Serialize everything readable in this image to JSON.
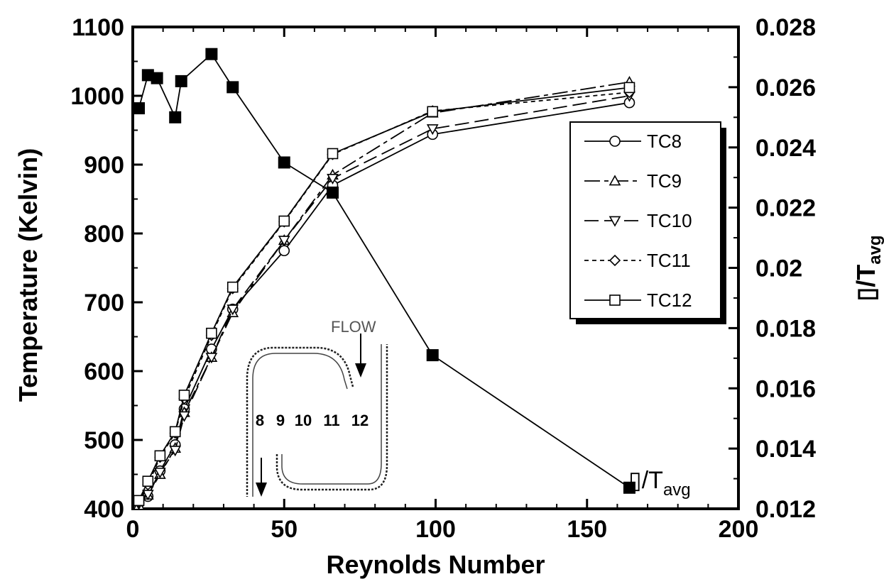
{
  "chart_data": {
    "type": "line",
    "xlabel": "Reynolds Number",
    "ylabel": "Temperature (Kelvin)",
    "y2label": "▯/T",
    "y2label_sub": "avg",
    "xlim": [
      0,
      200
    ],
    "ylim": [
      400,
      1100
    ],
    "y2lim": [
      0.012,
      0.028
    ],
    "xticks": [
      "0",
      "50",
      "100",
      "150",
      "200"
    ],
    "yticks": [
      "400",
      "500",
      "600",
      "700",
      "800",
      "900",
      "1000",
      "1100"
    ],
    "y2ticks": [
      "0.012",
      "0.014",
      "0.016",
      "0.018",
      "0.02",
      "0.022",
      "0.024",
      "0.026",
      "0.028"
    ],
    "grid": false,
    "legend_position": "top-right",
    "series": [
      {
        "name": "TC8",
        "marker": "circle",
        "dash": "solid",
        "x": [
          2,
          5,
          9,
          14,
          17,
          26,
          33,
          50,
          66,
          99,
          164
        ],
        "y": [
          408,
          418,
          455,
          493,
          545,
          632,
          690,
          775,
          870,
          944,
          990
        ]
      },
      {
        "name": "TC9",
        "marker": "triangle-up",
        "dash": "long-short",
        "x": [
          2,
          5,
          9,
          14,
          17,
          26,
          33,
          50,
          66,
          99,
          164
        ],
        "y": [
          405,
          420,
          450,
          488,
          540,
          620,
          685,
          790,
          885,
          975,
          1020
        ]
      },
      {
        "name": "TC10",
        "marker": "triangle-down",
        "dash": "long",
        "x": [
          2,
          5,
          9,
          14,
          17,
          26,
          33,
          50,
          66,
          99,
          164
        ],
        "y": [
          407,
          421,
          453,
          485,
          535,
          620,
          690,
          790,
          880,
          952,
          1000
        ]
      },
      {
        "name": "TC11",
        "marker": "diamond",
        "dash": "short",
        "x": [
          2,
          5,
          9,
          14,
          17,
          26,
          33,
          50,
          66,
          99,
          164
        ],
        "y": [
          410,
          435,
          475,
          510,
          560,
          652,
          720,
          817,
          915,
          978,
          1005
        ]
      },
      {
        "name": "TC12",
        "marker": "square",
        "dash": "solid",
        "x": [
          2,
          5,
          9,
          14,
          17,
          26,
          33,
          50,
          66,
          99,
          164
        ],
        "y": [
          412,
          440,
          477,
          512,
          565,
          655,
          722,
          818,
          916,
          977,
          1012
        ]
      }
    ],
    "secondary_series": {
      "name": "▯/T",
      "name_sub": "avg",
      "axis": "right",
      "marker": "filled-square",
      "x": [
        2,
        5,
        8,
        14,
        16,
        26,
        33,
        50,
        66,
        99,
        164
      ],
      "y": [
        0.0253,
        0.0264,
        0.0263,
        0.025,
        0.0262,
        0.0271,
        0.026,
        0.0235,
        0.0225,
        0.0171,
        0.0127
      ]
    },
    "inset": {
      "flow_label": "FLOW",
      "station_labels": [
        "8",
        "9",
        "10",
        "11",
        "12"
      ]
    }
  }
}
